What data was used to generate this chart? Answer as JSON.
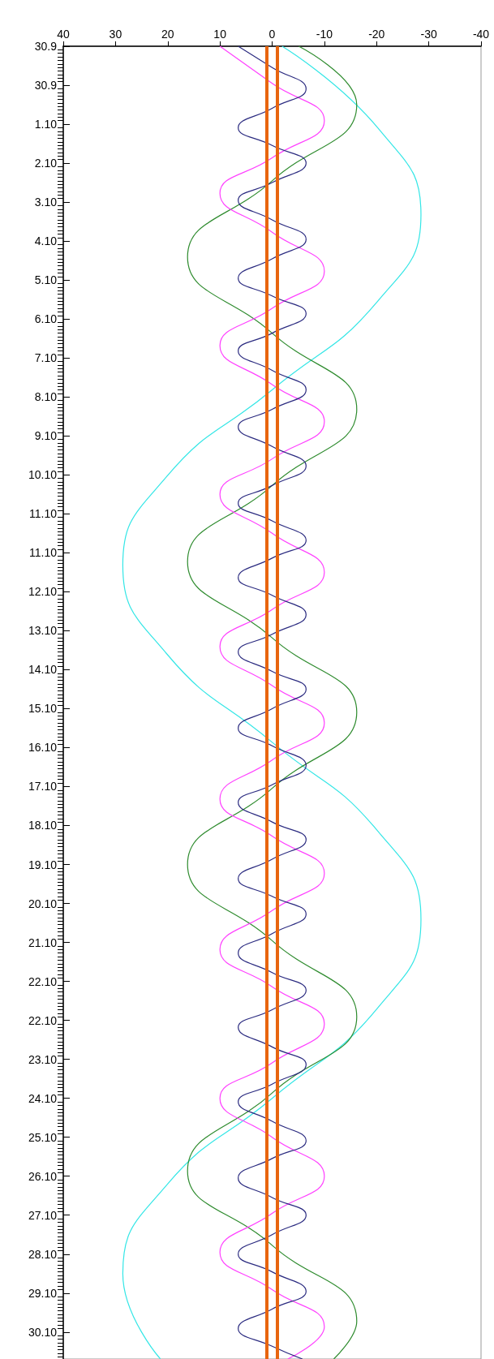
{
  "chart_data": {
    "type": "line",
    "orientation": "horizontal",
    "marker": "none",
    "line_style": "solid",
    "xlim": [
      40,
      -40
    ],
    "xticks": [
      40,
      30,
      20,
      10,
      0,
      -10,
      -20,
      -30,
      -40
    ],
    "ylim": [
      "--10-30T21:12",
      "--09-30T00:00"
    ],
    "yticks": [
      {
        "value": "--09-30T00:00",
        "label": "30.9"
      },
      {
        "value": "--09-30T22:00",
        "label": "30.9"
      },
      {
        "value": "--10-01T20:00",
        "label": "1.10"
      },
      {
        "value": "--10-02T18:00",
        "label": "2.10"
      },
      {
        "value": "--10-03T16:00",
        "label": "3.10"
      },
      {
        "value": "--10-04T14:00",
        "label": "4.10"
      },
      {
        "value": "--10-05T12:00",
        "label": "5.10"
      },
      {
        "value": "--10-06T10:00",
        "label": "6.10"
      },
      {
        "value": "--10-07T08:00",
        "label": "7.10"
      },
      {
        "value": "--10-08T06:00",
        "label": "8.10"
      },
      {
        "value": "--10-09T04:00",
        "label": "9.10"
      },
      {
        "value": "--10-10T02:00",
        "label": "10.10"
      },
      {
        "value": "--10-11T00:00",
        "label": "11.10"
      },
      {
        "value": "--10-11T22:00",
        "label": "11.10"
      },
      {
        "value": "--10-12T20:00",
        "label": "12.10"
      },
      {
        "value": "--10-13T18:00",
        "label": "13.10"
      },
      {
        "value": "--10-14T16:00",
        "label": "14.10"
      },
      {
        "value": "--10-15T14:00",
        "label": "15.10"
      },
      {
        "value": "--10-16T12:00",
        "label": "16.10"
      },
      {
        "value": "--10-17T10:00",
        "label": "17.10"
      },
      {
        "value": "--10-18T08:00",
        "label": "18.10"
      },
      {
        "value": "--10-19T06:00",
        "label": "19.10"
      },
      {
        "value": "--10-20T04:00",
        "label": "20.10"
      },
      {
        "value": "--10-21T02:00",
        "label": "21.10"
      },
      {
        "value": "--10-22T00:00",
        "label": "22.10"
      },
      {
        "value": "--10-22T22:00",
        "label": "22.10"
      },
      {
        "value": "--10-23T20:00",
        "label": "23.10"
      },
      {
        "value": "--10-24T18:00",
        "label": "24.10"
      },
      {
        "value": "--10-25T16:00",
        "label": "25.10"
      },
      {
        "value": "--10-26T14:00",
        "label": "26.10"
      },
      {
        "value": "--10-27T12:00",
        "label": "27.10"
      },
      {
        "value": "--10-28T10:00",
        "label": "28.10"
      },
      {
        "value": "--10-29T08:00",
        "label": "29.10"
      },
      {
        "value": "--10-30T06:00",
        "label": "30.10"
      }
    ],
    "ref_lines": [
      {
        "axis": "x",
        "value": 1,
        "color": "#e8650f"
      },
      {
        "axis": "x",
        "value": -1,
        "color": "#e8650f"
      }
    ],
    "series": [
      {
        "color": "#33e6e6",
        "x": [
          "--09-30T00:00",
          "--10-01T23:00",
          "--10-03T23:00",
          "--10-06T00:00",
          "--10-08T02:00",
          "--10-10T03:00",
          "--10-12T05:00",
          "--10-14T07:00",
          "--10-16T09:00",
          "--10-18T11:00",
          "--10-20T13:00",
          "--10-22T15:00",
          "--10-24T18:00",
          "--10-26T19:00",
          "--10-28T21:00",
          "--10-30T21:12"
        ],
        "values": [
          -1.9,
          -20.5,
          -28.5,
          -20.2,
          0,
          20.2,
          28.6,
          20.2,
          0,
          -20.2,
          -28.5,
          -20.2,
          0,
          20.2,
          28.6,
          21.4
        ]
      },
      {
        "color": "#2e8b2e",
        "x": [
          "--09-30T00:00",
          "--10-01T09:00",
          "--10-03T04:00",
          "--10-04T23:00",
          "--10-06T18:00",
          "--10-08T13:00",
          "--10-10T08:00",
          "--10-12T03:00",
          "--10-13T22:00",
          "--10-15T16:00",
          "--10-17T11:00",
          "--10-19T06:00",
          "--10-21T01:00",
          "--10-22T20:00",
          "--10-24T15:00",
          "--10-26T11:00",
          "--10-28T05:00",
          "--10-30T00:00",
          "--10-30T21:12"
        ],
        "values": [
          -5.1,
          -16.2,
          0,
          16.2,
          0,
          -16.2,
          0,
          16.2,
          0,
          -16.2,
          0,
          16.2,
          0,
          -16.2,
          0,
          16.2,
          0,
          -16.2,
          -11.8
        ]
      },
      {
        "color": "#ff40ff",
        "x": [
          "--09-30T00:00",
          "--09-30T21:00",
          "--10-01T18:00",
          "--10-02T15:00",
          "--10-03T11:00",
          "--10-04T09:00",
          "--10-05T07:00",
          "--10-06T04:00",
          "--10-07T01:00",
          "--10-07T23:00",
          "--10-08T20:00",
          "--10-09T17:00",
          "--10-10T13:00",
          "--10-11T11:00",
          "--10-12T09:00",
          "--10-13T06:00",
          "--10-14T03:00",
          "--10-15T01:00",
          "--10-15T22:00",
          "--10-16T19:00",
          "--10-17T17:00",
          "--10-18T14:00",
          "--10-19T11:00",
          "--10-20T08:00",
          "--10-21T06:00",
          "--10-22T03:00",
          "--10-23T00:00",
          "--10-23T22:00",
          "--10-24T18:00",
          "--10-25T16:00",
          "--10-26T14:00",
          "--10-27T11:00",
          "--10-28T09:00",
          "--10-29T06:00",
          "--10-30T03:00",
          "--10-30T21:12"
        ],
        "values": [
          10,
          0,
          -10,
          0,
          10,
          0,
          -10,
          0,
          10,
          0,
          -10,
          0,
          10,
          0,
          -10,
          0,
          10,
          0,
          -10,
          0,
          10,
          0,
          -10,
          0,
          10,
          0,
          -10,
          0,
          10,
          0,
          -10,
          0,
          10,
          0,
          -10,
          -3
        ]
      },
      {
        "color": "#2b2b80",
        "x": [
          "--09-30T00:00",
          "--09-30T12:00",
          "--10-01T00:00",
          "--10-01T11:00",
          "--10-01T22:00",
          "--10-02T08:00",
          "--10-02T18:00",
          "--10-03T05:00",
          "--10-03T15:00",
          "--10-04T02:00",
          "--10-04T13:00",
          "--10-05T00:00",
          "--10-05T11:00",
          "--10-05T21:00",
          "--10-06T07:00",
          "--10-06T18:00",
          "--10-07T04:00",
          "--10-07T15:00",
          "--10-08T02:00",
          "--10-08T13:00",
          "--10-08T23:00",
          "--10-09T10:00",
          "--10-09T21:00",
          "--10-10T08:00",
          "--10-10T18:00",
          "--10-11T04:00",
          "--10-11T15:00",
          "--10-12T01:00",
          "--10-12T12:00",
          "--10-12T22:00",
          "--10-13T09:00",
          "--10-13T20:00",
          "--10-14T06:00",
          "--10-14T17:00",
          "--10-15T03:00",
          "--10-15T14:00",
          "--10-16T01:00",
          "--10-16T11:00",
          "--10-16T22:00",
          "--10-17T09:00",
          "--10-17T19:00",
          "--10-18T06:00",
          "--10-18T16:00",
          "--10-19T03:00",
          "--10-19T14:00",
          "--10-20T00:00",
          "--10-20T10:00",
          "--10-20T21:00",
          "--10-21T08:00",
          "--10-21T19:00",
          "--10-22T05:00",
          "--10-22T16:00",
          "--10-23T02:00",
          "--10-23T13:00",
          "--10-23T23:00",
          "--10-24T10:00",
          "--10-24T20:00",
          "--10-25T07:00",
          "--10-25T18:00",
          "--10-26T04:00",
          "--10-26T15:00",
          "--10-27T02:00",
          "--10-27T12:00",
          "--10-27T23:00",
          "--10-28T10:00",
          "--10-28T20:00",
          "--10-29T07:00",
          "--10-29T17:00",
          "--10-30T04:00",
          "--10-30T14:00",
          "--10-30T21:12"
        ],
        "values": [
          6.5,
          0,
          -6.5,
          0,
          6.5,
          0,
          -6.5,
          0,
          6.5,
          0,
          -6.5,
          0,
          6.5,
          0,
          -6.5,
          0,
          6.5,
          0,
          -6.5,
          0,
          6.5,
          0,
          -6.5,
          0,
          6.5,
          0,
          -6.5,
          0,
          6.5,
          0,
          -6.5,
          0,
          6.5,
          0,
          -6.5,
          0,
          6.5,
          0,
          -6.5,
          0,
          6.5,
          0,
          -6.5,
          0,
          6.5,
          0,
          -6.5,
          0,
          6.5,
          0,
          -6.5,
          0,
          6.5,
          0,
          -6.5,
          0,
          6.5,
          0,
          -6.5,
          0,
          6.5,
          0,
          -6.5,
          0,
          6.5,
          0,
          -6.5,
          0,
          6.5,
          0,
          -5.8
        ]
      }
    ]
  }
}
